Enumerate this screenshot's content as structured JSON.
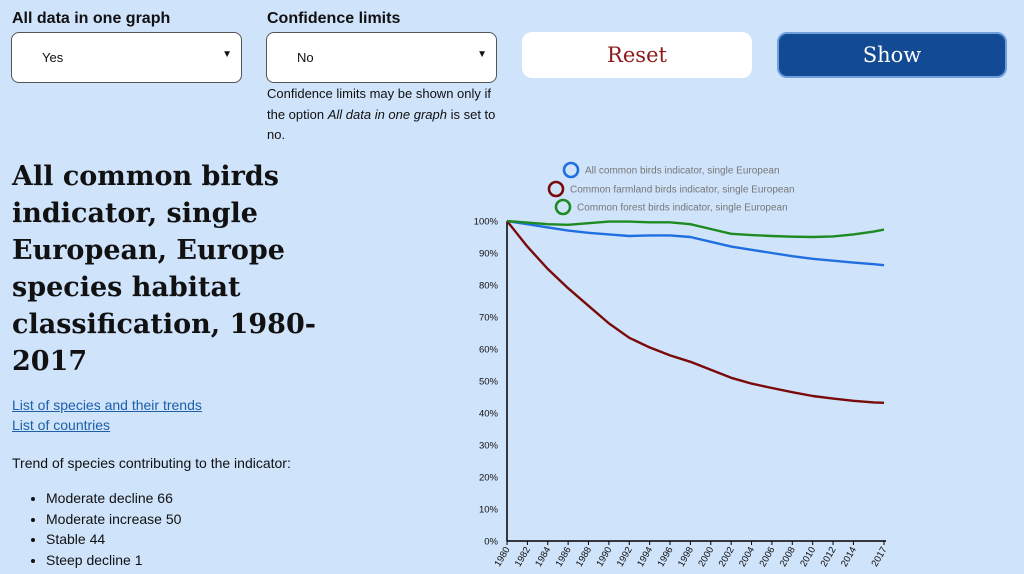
{
  "controls": {
    "all_data_label": "All data in one graph",
    "all_data_value": "Yes",
    "confidence_label": "Confidence limits",
    "confidence_value": "No",
    "note_pre": "Confidence limits may be shown only if the option ",
    "note_em": "All data in one graph",
    "note_post": " is set to no.",
    "reset_label": "Reset",
    "show_label": "Show"
  },
  "info": {
    "title": "All common birds indicator, single European, Europe species habitat classification, 1980-2017",
    "link_species": "List of species and their trends",
    "link_countries": "List of countries",
    "trend_label": "Trend of species contributing to the indicator:",
    "trends": [
      "Moderate decline 66",
      "Moderate increase 50",
      "Stable 44",
      "Steep decline 1"
    ]
  },
  "chart_data": {
    "type": "line",
    "x": [
      1980,
      1982,
      1984,
      1986,
      1988,
      1990,
      1992,
      1994,
      1996,
      1998,
      2000,
      2002,
      2004,
      2006,
      2008,
      2010,
      2012,
      2014,
      2016,
      2017
    ],
    "x_tick_labels": [
      "1980",
      "1982",
      "1984",
      "1986",
      "1988",
      "1990",
      "1992",
      "1994",
      "1996",
      "1998",
      "2000",
      "2002",
      "2004",
      "2006",
      "2008",
      "2010",
      "2012",
      "2014",
      "2017"
    ],
    "x_tick_values": [
      1980,
      1982,
      1984,
      1986,
      1988,
      1990,
      1992,
      1994,
      1996,
      1998,
      2000,
      2002,
      2004,
      2006,
      2008,
      2010,
      2012,
      2014,
      2017
    ],
    "ylim": [
      0,
      100
    ],
    "y_ticks": [
      0,
      10,
      20,
      30,
      40,
      50,
      60,
      70,
      80,
      90,
      100
    ],
    "y_tick_suffix": "%",
    "legend_position": "top",
    "series": [
      {
        "name": "All common birds indicator, single European",
        "color": "#1f6fe0",
        "values": [
          100,
          99,
          98,
          97,
          96.3,
          95.8,
          95.3,
          95.5,
          95.5,
          95,
          93.5,
          92,
          91,
          90,
          89,
          88.2,
          87.6,
          87,
          86.5,
          86.2
        ]
      },
      {
        "name": "Common farmland birds indicator, single European",
        "color": "#7a0a0a",
        "values": [
          100,
          92,
          85,
          79,
          73.5,
          68,
          63.5,
          60.5,
          58,
          56,
          53.5,
          51,
          49.2,
          47.8,
          46.5,
          45.3,
          44.5,
          43.8,
          43.3,
          43.2
        ]
      },
      {
        "name": "Common forest birds indicator, single European",
        "color": "#1e8a22",
        "values": [
          100,
          99.5,
          99,
          98.8,
          99.3,
          99.8,
          99.8,
          99.6,
          99.6,
          99,
          97.5,
          96,
          95.6,
          95.3,
          95.1,
          95,
          95.2,
          95.8,
          96.7,
          97.3
        ]
      }
    ]
  }
}
